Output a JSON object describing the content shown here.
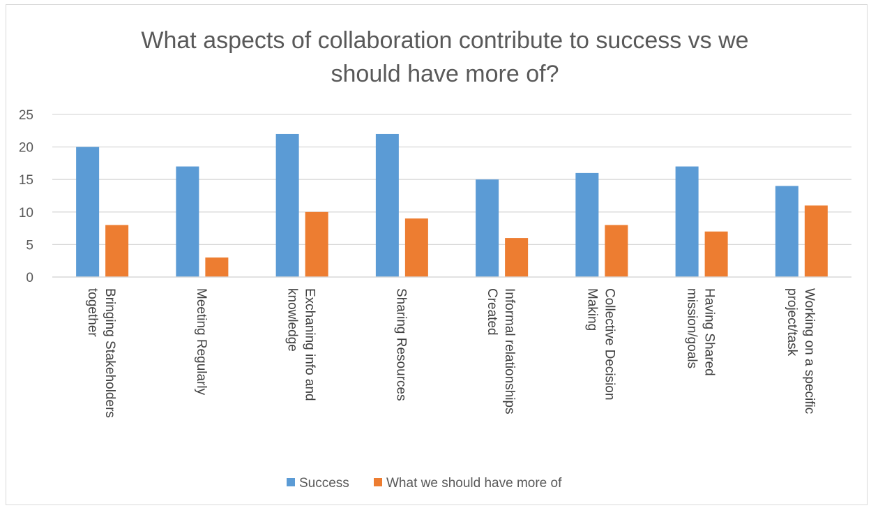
{
  "chart_data": {
    "type": "bar",
    "title_lines": [
      "What aspects of collaboration contribute to success vs we",
      "should have more of?"
    ],
    "categories": [
      [
        "Bringing Stakeholders",
        "together"
      ],
      [
        "Meeting Regularly"
      ],
      [
        "Exchaning info and",
        "knowledge"
      ],
      [
        "Sharing Resources"
      ],
      [
        "Informal relationships",
        "Created"
      ],
      [
        "Collective Decision",
        "Making"
      ],
      [
        "Having Shared",
        "mission/goals"
      ],
      [
        "Working on a specific",
        "project/task"
      ]
    ],
    "series": [
      {
        "name": "Success",
        "color": "#5b9bd5",
        "values": [
          20,
          17,
          22,
          22,
          15,
          16,
          17,
          14
        ]
      },
      {
        "name": "What we should have more of",
        "color": "#ed7d31",
        "values": [
          8,
          3,
          10,
          9,
          6,
          8,
          7,
          11
        ]
      }
    ],
    "ylim": [
      0,
      25
    ],
    "yticks": [
      0,
      5,
      10,
      15,
      20,
      25
    ],
    "grid": true,
    "gridline_color": "#d9d9d9",
    "legend_position": "bottom"
  }
}
